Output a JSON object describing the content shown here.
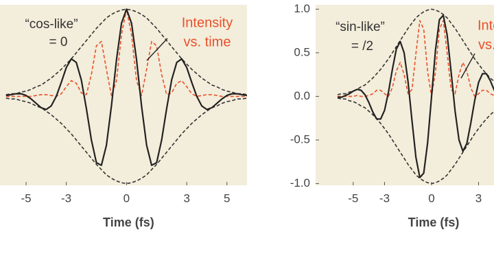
{
  "chart_data": [
    {
      "type": "line",
      "x_label": "Time (fs)",
      "annotations": [
        "“cos-like”",
        "= 0",
        "Intensity",
        "vs. time"
      ],
      "xlim": [
        -6.3,
        6.0
      ],
      "ylim": [
        -1.02,
        1.05
      ],
      "xticks": [
        -5,
        -3,
        0,
        3,
        5
      ],
      "background": "#f3eddb",
      "x": [
        -6,
        -5.75,
        -5.5,
        -5.25,
        -5,
        -4.75,
        -4.5,
        -4.25,
        -4,
        -3.75,
        -3.5,
        -3.25,
        -3,
        -2.75,
        -2.5,
        -2.25,
        -2,
        -1.75,
        -1.5,
        -1.25,
        -1,
        -0.75,
        -0.5,
        -0.25,
        0,
        0.25,
        0.5,
        0.75,
        1,
        1.25,
        1.5,
        1.75,
        2,
        2.25,
        2.5,
        2.75,
        3,
        3.25,
        3.5,
        3.75,
        4,
        4.25,
        4.5,
        4.75,
        5,
        5.25,
        5.5,
        5.75,
        6
      ],
      "series": [
        {
          "color": "#333333",
          "style": "dashed",
          "values": [
            0.02,
            0.03,
            0.03,
            0.05,
            0.06,
            0.08,
            0.11,
            0.13,
            0.17,
            0.21,
            0.26,
            0.31,
            0.37,
            0.43,
            0.5,
            0.57,
            0.64,
            0.71,
            0.78,
            0.84,
            0.9,
            0.94,
            0.97,
            0.99,
            1,
            0.99,
            0.97,
            0.94,
            0.9,
            0.84,
            0.78,
            0.71,
            0.64,
            0.57,
            0.5,
            0.43,
            0.37,
            0.31,
            0.26,
            0.21,
            0.17,
            0.13,
            0.11,
            0.08,
            0.06,
            0.05,
            0.03,
            0.03,
            0.02
          ]
        },
        {
          "color": "#333333",
          "style": "dashed",
          "values": [
            -0.02,
            -0.03,
            -0.03,
            -0.05,
            -0.06,
            -0.08,
            -0.11,
            -0.13,
            -0.17,
            -0.21,
            -0.26,
            -0.31,
            -0.37,
            -0.43,
            -0.5,
            -0.57,
            -0.64,
            -0.71,
            -0.78,
            -0.84,
            -0.9,
            -0.94,
            -0.97,
            -0.99,
            -1,
            -0.99,
            -0.97,
            -0.94,
            -0.9,
            -0.84,
            -0.78,
            -0.71,
            -0.64,
            -0.57,
            -0.5,
            -0.43,
            -0.37,
            -0.31,
            -0.26,
            -0.21,
            -0.17,
            -0.13,
            -0.11,
            -0.08,
            -0.06,
            -0.05,
            -0.03,
            -0.03,
            -0.02
          ]
        },
        {
          "color": "#e8502a",
          "style": "dashed",
          "values": [
            0,
            0,
            0,
            0,
            0,
            0,
            0.01,
            0.02,
            0.02,
            0.01,
            0,
            0.03,
            0.11,
            0.18,
            0.15,
            0.04,
            0.02,
            0.25,
            0.58,
            0.63,
            0.31,
            0.01,
            0.18,
            0.71,
            1,
            0.71,
            0.18,
            0.01,
            0.31,
            0.63,
            0.58,
            0.25,
            0.02,
            0.04,
            0.15,
            0.18,
            0.11,
            0.03,
            0,
            0.01,
            0.02,
            0.02,
            0.01,
            0,
            0,
            0,
            0,
            0,
            0
          ]
        },
        {
          "color": "#222222",
          "style": "solid",
          "values": [
            0.01,
            0.02,
            0.03,
            0.03,
            0.01,
            -0.03,
            -0.08,
            -0.13,
            -0.15,
            -0.11,
            0,
            0.16,
            0.33,
            0.43,
            0.39,
            0.19,
            -0.14,
            -0.5,
            -0.76,
            -0.79,
            -0.56,
            -0.11,
            0.42,
            0.84,
            1,
            0.84,
            0.42,
            -0.11,
            -0.56,
            -0.79,
            -0.76,
            -0.5,
            -0.14,
            0.19,
            0.39,
            0.43,
            0.33,
            0.16,
            0,
            -0.11,
            -0.15,
            -0.13,
            -0.08,
            -0.03,
            0.01,
            0.03,
            0.03,
            0.02,
            0.01
          ]
        }
      ]
    },
    {
      "type": "line",
      "x_label": "Time (fs)",
      "annotations": [
        "“sin-like”",
        "= /2",
        "Intensity",
        "vs. time"
      ],
      "xlim": [
        -7.4,
        7.4
      ],
      "ylim": [
        -1.02,
        1.05
      ],
      "xticks": [
        -5,
        -3,
        0,
        3
      ],
      "yticks": [
        {
          "value": -1,
          "label": "-1.0"
        },
        {
          "value": -0.5,
          "label": "-0.5"
        },
        {
          "value": 0,
          "label": "0.0"
        },
        {
          "value": 0.5,
          "label": "0.5"
        },
        {
          "value": 1,
          "label": "1.0"
        }
      ],
      "background": "#f3eddb",
      "x": [
        -6,
        -5.75,
        -5.5,
        -5.25,
        -5,
        -4.75,
        -4.5,
        -4.25,
        -4,
        -3.75,
        -3.5,
        -3.25,
        -3,
        -2.75,
        -2.5,
        -2.25,
        -2,
        -1.75,
        -1.5,
        -1.25,
        -1,
        -0.75,
        -0.5,
        -0.25,
        0,
        0.25,
        0.5,
        0.75,
        1,
        1.25,
        1.5,
        1.75,
        2,
        2.25,
        2.5,
        2.75,
        3,
        3.25,
        3.5,
        3.75,
        4,
        4.25,
        4.5,
        4.75,
        5,
        5.25,
        5.5,
        5.75,
        6
      ],
      "series": [
        {
          "color": "#333333",
          "style": "dashed",
          "values": [
            0.02,
            0.03,
            0.03,
            0.05,
            0.06,
            0.08,
            0.11,
            0.13,
            0.17,
            0.21,
            0.26,
            0.31,
            0.37,
            0.43,
            0.5,
            0.57,
            0.64,
            0.71,
            0.78,
            0.84,
            0.9,
            0.94,
            0.97,
            0.99,
            1,
            0.99,
            0.97,
            0.94,
            0.9,
            0.84,
            0.78,
            0.71,
            0.64,
            0.57,
            0.5,
            0.43,
            0.37,
            0.31,
            0.26,
            0.21,
            0.17,
            0.13,
            0.11,
            0.08,
            0.06,
            0.05,
            0.03,
            0.03,
            0.02
          ]
        },
        {
          "color": "#333333",
          "style": "dashed",
          "values": [
            -0.02,
            -0.03,
            -0.03,
            -0.05,
            -0.06,
            -0.08,
            -0.11,
            -0.13,
            -0.17,
            -0.21,
            -0.26,
            -0.31,
            -0.37,
            -0.43,
            -0.5,
            -0.57,
            -0.64,
            -0.71,
            -0.78,
            -0.84,
            -0.9,
            -0.94,
            -0.97,
            -0.99,
            -1,
            -0.99,
            -0.97,
            -0.94,
            -0.9,
            -0.84,
            -0.78,
            -0.71,
            -0.64,
            -0.57,
            -0.5,
            -0.43,
            -0.37,
            -0.31,
            -0.26,
            -0.21,
            -0.17,
            -0.13,
            -0.11,
            -0.08,
            -0.06,
            -0.05,
            -0.03,
            -0.03,
            -0.02
          ]
        },
        {
          "color": "#e8502a",
          "style": "dashed",
          "values": [
            0,
            0,
            0,
            0,
            0,
            0.01,
            0,
            0,
            0.01,
            0.03,
            0.07,
            0.07,
            0.03,
            0,
            0.1,
            0.29,
            0.39,
            0.25,
            0.03,
            0.08,
            0.49,
            0.87,
            0.77,
            0.28,
            0,
            0.28,
            0.77,
            0.87,
            0.49,
            0.08,
            0.03,
            0.25,
            0.39,
            0.29,
            0.1,
            0,
            0.03,
            0.07,
            0.07,
            0.03,
            0.01,
            0,
            0,
            0.01,
            0,
            0,
            0,
            0,
            0
          ]
        },
        {
          "color": "#222222",
          "style": "solid",
          "values": [
            -0.01,
            -0.01,
            0.01,
            0.03,
            0.06,
            0.08,
            0.07,
            0.02,
            -0.07,
            -0.18,
            -0.26,
            -0.26,
            -0.16,
            0.05,
            0.31,
            0.54,
            0.63,
            0.5,
            0.17,
            -0.28,
            -0.7,
            -0.93,
            -0.88,
            -0.53,
            0,
            0.53,
            0.88,
            0.93,
            0.7,
            0.28,
            -0.17,
            -0.5,
            -0.63,
            -0.54,
            -0.31,
            -0.05,
            0.16,
            0.26,
            0.26,
            0.18,
            0.07,
            -0.02,
            -0.07,
            -0.08,
            -0.06,
            -0.03,
            -0.01,
            0.01,
            0.01
          ]
        }
      ]
    }
  ]
}
